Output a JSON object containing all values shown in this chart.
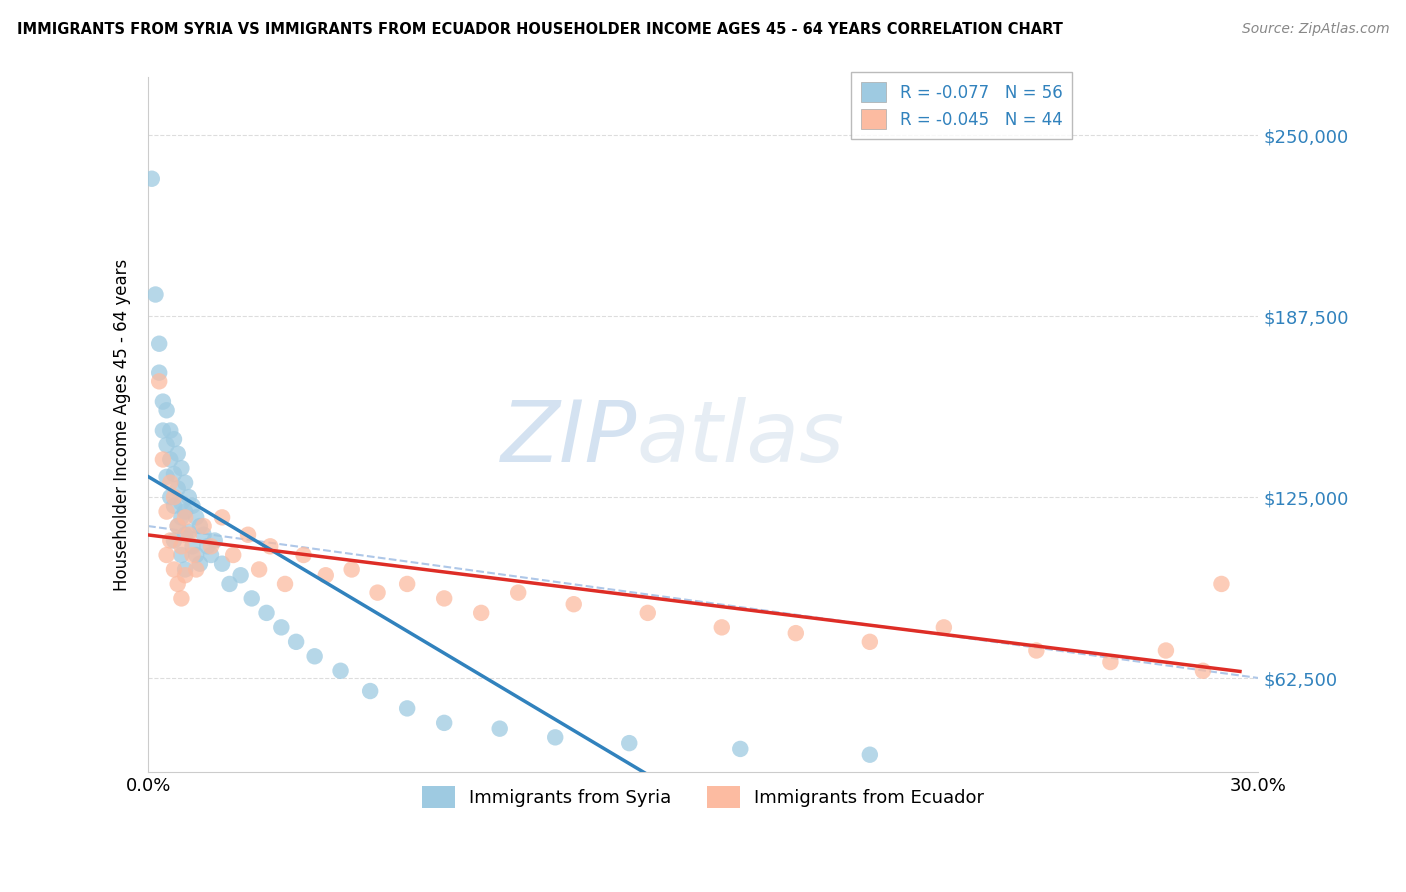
{
  "title": "IMMIGRANTS FROM SYRIA VS IMMIGRANTS FROM ECUADOR HOUSEHOLDER INCOME AGES 45 - 64 YEARS CORRELATION CHART",
  "source": "Source: ZipAtlas.com",
  "ylabel": "Householder Income Ages 45 - 64 years",
  "yticks": [
    62500,
    125000,
    187500,
    250000
  ],
  "ytick_labels": [
    "$62,500",
    "$125,000",
    "$187,500",
    "$250,000"
  ],
  "xlim": [
    0.0,
    0.3
  ],
  "ylim": [
    30000,
    270000
  ],
  "syria_R": -0.077,
  "syria_N": 56,
  "ecuador_R": -0.045,
  "ecuador_N": 44,
  "syria_color": "#9ecae1",
  "ecuador_color": "#fcbba1",
  "syria_line_color": "#3182bd",
  "ecuador_line_color": "#de2d26",
  "dashed_color": "#aec7e8",
  "syria_x": [
    0.001,
    0.002,
    0.003,
    0.003,
    0.004,
    0.004,
    0.005,
    0.005,
    0.005,
    0.006,
    0.006,
    0.006,
    0.007,
    0.007,
    0.007,
    0.007,
    0.008,
    0.008,
    0.008,
    0.009,
    0.009,
    0.009,
    0.009,
    0.01,
    0.01,
    0.01,
    0.01,
    0.011,
    0.011,
    0.012,
    0.012,
    0.013,
    0.013,
    0.014,
    0.014,
    0.015,
    0.016,
    0.017,
    0.018,
    0.02,
    0.022,
    0.025,
    0.028,
    0.032,
    0.036,
    0.04,
    0.045,
    0.052,
    0.06,
    0.07,
    0.08,
    0.095,
    0.11,
    0.13,
    0.16,
    0.195
  ],
  "syria_y": [
    235000,
    195000,
    178000,
    168000,
    158000,
    148000,
    155000,
    143000,
    132000,
    148000,
    138000,
    125000,
    145000,
    133000,
    122000,
    110000,
    140000,
    128000,
    115000,
    135000,
    123000,
    118000,
    105000,
    130000,
    120000,
    112000,
    100000,
    125000,
    113000,
    122000,
    108000,
    118000,
    105000,
    115000,
    102000,
    112000,
    108000,
    105000,
    110000,
    102000,
    95000,
    98000,
    90000,
    85000,
    80000,
    75000,
    70000,
    65000,
    58000,
    52000,
    47000,
    45000,
    42000,
    40000,
    38000,
    36000
  ],
  "ecuador_x": [
    0.003,
    0.004,
    0.005,
    0.005,
    0.006,
    0.006,
    0.007,
    0.007,
    0.008,
    0.008,
    0.009,
    0.009,
    0.01,
    0.01,
    0.011,
    0.012,
    0.013,
    0.015,
    0.017,
    0.02,
    0.023,
    0.027,
    0.03,
    0.033,
    0.037,
    0.042,
    0.048,
    0.055,
    0.062,
    0.07,
    0.08,
    0.09,
    0.1,
    0.115,
    0.135,
    0.155,
    0.175,
    0.195,
    0.215,
    0.24,
    0.26,
    0.275,
    0.285,
    0.29
  ],
  "ecuador_y": [
    165000,
    138000,
    120000,
    105000,
    130000,
    110000,
    125000,
    100000,
    115000,
    95000,
    108000,
    90000,
    118000,
    98000,
    112000,
    105000,
    100000,
    115000,
    108000,
    118000,
    105000,
    112000,
    100000,
    108000,
    95000,
    105000,
    98000,
    100000,
    92000,
    95000,
    90000,
    85000,
    92000,
    88000,
    85000,
    80000,
    78000,
    75000,
    80000,
    72000,
    68000,
    72000,
    65000,
    95000
  ]
}
